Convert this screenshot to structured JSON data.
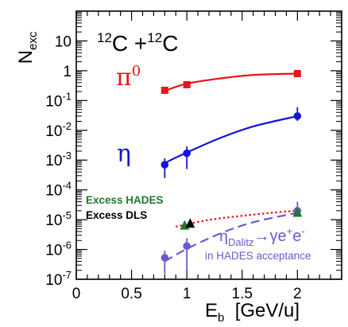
{
  "chart_data": {
    "type": "scatter",
    "title": "",
    "system": {
      "a1": "12",
      "e1": "C +",
      "a2": "12",
      "e2": "C"
    },
    "xlabel": {
      "main": "E",
      "sub": "b",
      "unit": "  [GeV/u]"
    },
    "ylabel": {
      "main": "N",
      "sub": "exc"
    },
    "xlim": [
      0,
      2.4
    ],
    "ylim": [
      1e-07,
      100
    ],
    "yscale": "log",
    "xticks": [
      0,
      0.5,
      1,
      1.5,
      2
    ],
    "xtick_labels": [
      "0",
      "0.5",
      "1",
      "1.5",
      "2"
    ],
    "ytick_labels": [
      {
        "value": 10,
        "base": "10",
        "exp": ""
      },
      {
        "value": 1,
        "base": "1",
        "exp": ""
      },
      {
        "value": 0.1,
        "base": "10",
        "exp": "-1"
      },
      {
        "value": 0.01,
        "base": "10",
        "exp": "-2"
      },
      {
        "value": 0.001,
        "base": "10",
        "exp": "-3"
      },
      {
        "value": 0.0001,
        "base": "10",
        "exp": "-4"
      },
      {
        "value": 1e-05,
        "base": "10",
        "exp": "-5"
      },
      {
        "value": 1e-06,
        "base": "10",
        "exp": "-6"
      },
      {
        "value": 1e-07,
        "base": "10",
        "exp": "-7"
      }
    ],
    "series": [
      {
        "key": "pi0",
        "label": "π",
        "label_sup": "0",
        "color": "#e8141b",
        "marker": "square",
        "x": [
          0.8,
          1.0,
          2.0
        ],
        "y": [
          0.22,
          0.34,
          0.8
        ],
        "fit": {
          "style": "solid",
          "x": [
            0.8,
            1.0,
            1.3,
            1.6,
            2.0
          ],
          "y": [
            0.21,
            0.37,
            0.55,
            0.72,
            0.8
          ]
        }
      },
      {
        "key": "eta",
        "label": "η",
        "color": "#1414d8",
        "marker": "circle",
        "x": [
          0.8,
          1.0,
          2.0
        ],
        "y": [
          0.0007,
          0.0017,
          0.03
        ],
        "err_low": [
          0.00045,
          0.0012,
          0.03
        ],
        "fit": {
          "style": "solid",
          "x": [
            0.8,
            1.0,
            1.3,
            1.6,
            2.0
          ],
          "y": [
            0.0008,
            0.0018,
            0.0055,
            0.0135,
            0.03
          ]
        }
      },
      {
        "key": "eta_dalitz",
        "color": "#6a5ad0",
        "marker": "circle",
        "label": {
          "main": "η",
          "sub": "Dalitz",
          "rest": "→γe",
          "sup1": "+",
          "e": "e",
          "sup2": "-"
        },
        "note": "in HADES acceptance",
        "x": [
          0.8,
          1.0,
          2.0
        ],
        "y": [
          5.3e-07,
          1.3e-06,
          2e-05
        ],
        "err_low": [
          3.8e-07,
          1.1e-06,
          2e-05
        ],
        "fit": {
          "style": "dashed",
          "x": [
            0.8,
            1.0,
            1.3,
            1.6,
            2.0
          ],
          "y": [
            4e-07,
            1.05e-06,
            3.4e-06,
            8.2e-06,
            1.7e-05
          ]
        }
      },
      {
        "key": "excess_hades",
        "label": "Excess HADES",
        "color": "#1e7a2a",
        "marker": "triangle",
        "x": [
          0.98,
          2.0
        ],
        "y": [
          6.5e-06,
          1.75e-05
        ]
      },
      {
        "key": "excess_dls",
        "label": "Excess DLS",
        "color": "#000000",
        "marker": "triangle",
        "x": [
          1.03
        ],
        "y": [
          7.5e-06
        ],
        "fit": {
          "style": "dotted",
          "color": "#e8141b",
          "x": [
            0.9,
            1.2,
            1.5,
            1.8,
            2.0
          ],
          "y": [
            5.8e-06,
            9.8e-06,
            1.35e-05,
            1.75e-05,
            2e-05
          ]
        }
      }
    ]
  }
}
